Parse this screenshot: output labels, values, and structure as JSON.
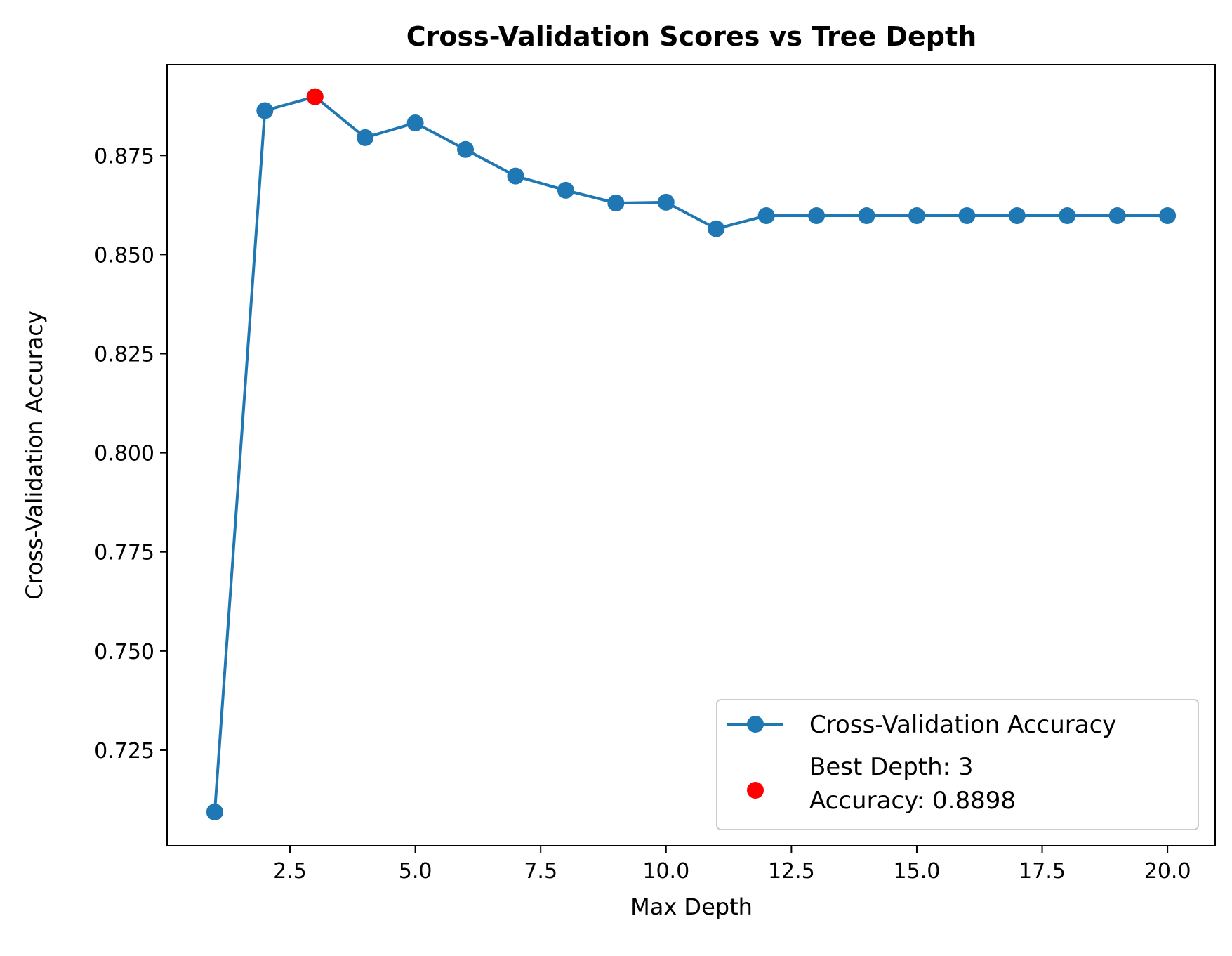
{
  "chart_data": {
    "type": "line",
    "title": "Cross-Validation Scores vs Tree Depth",
    "xlabel": "Max Depth",
    "ylabel": "Cross-Validation Accuracy",
    "xlim": [
      0.05,
      20.95
    ],
    "ylim": [
      0.7009,
      0.8979
    ],
    "xticks": [
      2.5,
      5.0,
      7.5,
      10.0,
      12.5,
      15.0,
      17.5,
      20.0
    ],
    "xtick_labels": [
      "2.5",
      "5.0",
      "7.5",
      "10.0",
      "12.5",
      "15.0",
      "17.5",
      "20.0"
    ],
    "yticks": [
      0.725,
      0.75,
      0.775,
      0.8,
      0.825,
      0.85,
      0.875
    ],
    "ytick_labels": [
      "0.725",
      "0.750",
      "0.775",
      "0.800",
      "0.825",
      "0.850",
      "0.875"
    ],
    "grid": false,
    "legend_position": "lower-right",
    "series": [
      {
        "name": "Cross-Validation Accuracy",
        "color": "#1f77b4",
        "marker": "circle",
        "x": [
          1,
          2,
          3,
          4,
          5,
          6,
          7,
          8,
          9,
          10,
          11,
          12,
          13,
          14,
          15,
          16,
          17,
          18,
          19,
          20
        ],
        "y": [
          0.7094,
          0.8863,
          0.8898,
          0.8795,
          0.8832,
          0.8765,
          0.8698,
          0.8662,
          0.863,
          0.8632,
          0.8565,
          0.8598,
          0.8598,
          0.8598,
          0.8598,
          0.8598,
          0.8598,
          0.8598,
          0.8598,
          0.8598
        ]
      }
    ],
    "highlight": {
      "legend_line1": "Best Depth: 3",
      "legend_line2": "Accuracy: 0.8898",
      "x": 3,
      "y": 0.8898,
      "color": "#ff0000"
    }
  }
}
